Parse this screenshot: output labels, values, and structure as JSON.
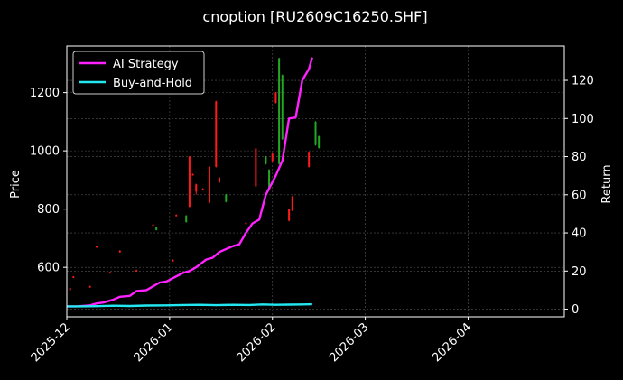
{
  "chart_data": {
    "type": "line",
    "title": "cnoption [RU2609C16250.SHF]",
    "ylabel_left": "Price",
    "ylabel_right": "Return",
    "xlabel": "",
    "x_ticks": [
      "2025-12",
      "2026-01",
      "2026-02",
      "2026-03",
      "2026-04"
    ],
    "x_range": [
      "2025-12-01",
      "2026-04-30"
    ],
    "ylim_left": [
      430,
      1360
    ],
    "yticks_left": [
      600,
      800,
      1000,
      1200
    ],
    "ylim_right": [
      -4,
      138
    ],
    "yticks_right": [
      0,
      20,
      40,
      60,
      80,
      100,
      120
    ],
    "grid": true,
    "legend_position": "top-left",
    "colors": {
      "background": "#000000",
      "ai_strategy": "#ff22ff",
      "buy_and_hold": "#22e6f0",
      "candle_up": "#22a822",
      "candle_down": "#ff1a1a",
      "grid": "#555555",
      "text": "#ffffff"
    },
    "series": [
      {
        "name": "AI Strategy",
        "axis": "right",
        "x": [
          "2025-12-01",
          "2025-12-04",
          "2025-12-08",
          "2025-12-10",
          "2025-12-12",
          "2025-12-15",
          "2025-12-17",
          "2025-12-20",
          "2025-12-22",
          "2025-12-25",
          "2025-12-29",
          "2025-12-31",
          "2026-01-05",
          "2026-01-07",
          "2026-01-09",
          "2026-01-12",
          "2026-01-14",
          "2026-01-16",
          "2026-01-20",
          "2026-01-22",
          "2026-01-24",
          "2026-01-26",
          "2026-01-28",
          "2026-01-30",
          "2026-02-02",
          "2026-02-04",
          "2026-02-06",
          "2026-02-08",
          "2026-02-10",
          "2026-02-12",
          "2026-02-13"
        ],
        "values": [
          1.5,
          1.5,
          2,
          3,
          3.5,
          5,
          6.5,
          7,
          9.5,
          10,
          14,
          14.5,
          19,
          20,
          22,
          26,
          27,
          30,
          33,
          34,
          40,
          45,
          47,
          60,
          70,
          78,
          100,
          100.5,
          120,
          126,
          132
        ]
      },
      {
        "name": "Buy-and-Hold",
        "axis": "right",
        "x": [
          "2025-12-01",
          "2025-12-05",
          "2025-12-10",
          "2025-12-15",
          "2025-12-20",
          "2025-12-25",
          "2025-12-31",
          "2026-01-05",
          "2026-01-10",
          "2026-01-15",
          "2026-01-20",
          "2026-01-25",
          "2026-01-29",
          "2026-02-02",
          "2026-02-06",
          "2026-02-10",
          "2026-02-13"
        ],
        "values": [
          1.5,
          1.5,
          1.6,
          1.8,
          1.7,
          1.9,
          2.0,
          2.2,
          2.3,
          2.1,
          2.3,
          2.2,
          2.5,
          2.3,
          2.4,
          2.5,
          2.6
        ]
      }
    ],
    "candles": [
      {
        "date": "2025-12-02",
        "open": 528,
        "close": 522,
        "high": 530,
        "low": 520
      },
      {
        "date": "2025-12-03",
        "open": 568,
        "close": 565,
        "high": 570,
        "low": 564
      },
      {
        "date": "2025-12-08",
        "open": 535,
        "close": 533,
        "high": 537,
        "low": 532
      },
      {
        "date": "2025-12-10",
        "open": 672,
        "close": 669,
        "high": 673,
        "low": 668
      },
      {
        "date": "2025-12-14",
        "open": 583,
        "close": 580,
        "high": 585,
        "low": 579
      },
      {
        "date": "2025-12-17",
        "open": 657,
        "close": 652,
        "high": 659,
        "low": 650
      },
      {
        "date": "2025-12-22",
        "open": 590,
        "close": 587,
        "high": 592,
        "low": 586
      },
      {
        "date": "2025-12-27",
        "open": 747,
        "close": 745,
        "high": 749,
        "low": 744
      },
      {
        "date": "2025-12-28",
        "open": 728,
        "close": 737,
        "high": 738,
        "low": 727
      },
      {
        "date": "2026-01-02",
        "open": 625,
        "close": 622,
        "high": 627,
        "low": 620
      },
      {
        "date": "2026-01-03",
        "open": 780,
        "close": 776,
        "high": 782,
        "low": 775
      },
      {
        "date": "2026-01-06",
        "open": 755,
        "close": 778,
        "high": 779,
        "low": 754
      },
      {
        "date": "2026-01-07",
        "open": 980,
        "close": 808,
        "high": 982,
        "low": 806
      },
      {
        "date": "2026-01-08",
        "open": 920,
        "close": 917,
        "high": 922,
        "low": 915
      },
      {
        "date": "2026-01-09",
        "open": 885,
        "close": 860,
        "high": 887,
        "low": 850
      },
      {
        "date": "2026-01-11",
        "open": 870,
        "close": 868,
        "high": 872,
        "low": 866
      },
      {
        "date": "2026-01-13",
        "open": 945,
        "close": 822,
        "high": 947,
        "low": 820
      },
      {
        "date": "2026-01-15",
        "open": 1170,
        "close": 945,
        "high": 1172,
        "low": 943
      },
      {
        "date": "2026-01-16",
        "open": 908,
        "close": 892,
        "high": 910,
        "low": 890
      },
      {
        "date": "2026-01-18",
        "open": 825,
        "close": 850,
        "high": 852,
        "low": 823
      },
      {
        "date": "2026-01-24",
        "open": 753,
        "close": 751,
        "high": 755,
        "low": 750
      },
      {
        "date": "2026-01-27",
        "open": 1008,
        "close": 878,
        "high": 1010,
        "low": 876
      },
      {
        "date": "2026-01-30",
        "open": 955,
        "close": 980,
        "high": 982,
        "low": 953
      },
      {
        "date": "2026-01-31",
        "open": 875,
        "close": 935,
        "high": 937,
        "low": 873
      },
      {
        "date": "2026-02-01",
        "open": 990,
        "close": 965,
        "high": 992,
        "low": 963
      },
      {
        "date": "2026-02-02",
        "open": 1200,
        "close": 1165,
        "high": 1202,
        "low": 1163
      },
      {
        "date": "2026-02-03",
        "open": 955,
        "close": 1318,
        "high": 1320,
        "low": 953
      },
      {
        "date": "2026-02-04",
        "open": 1040,
        "close": 1260,
        "high": 1262,
        "low": 1038
      },
      {
        "date": "2026-02-06",
        "open": 800,
        "close": 760,
        "high": 802,
        "low": 758
      },
      {
        "date": "2026-02-07",
        "open": 843,
        "close": 795,
        "high": 845,
        "low": 793
      },
      {
        "date": "2026-02-12",
        "open": 996,
        "close": 945,
        "high": 998,
        "low": 943
      },
      {
        "date": "2026-02-14",
        "open": 1020,
        "close": 1100,
        "high": 1102,
        "low": 1018
      },
      {
        "date": "2026-02-15",
        "open": 1010,
        "close": 1050,
        "high": 1052,
        "low": 1008
      }
    ]
  }
}
